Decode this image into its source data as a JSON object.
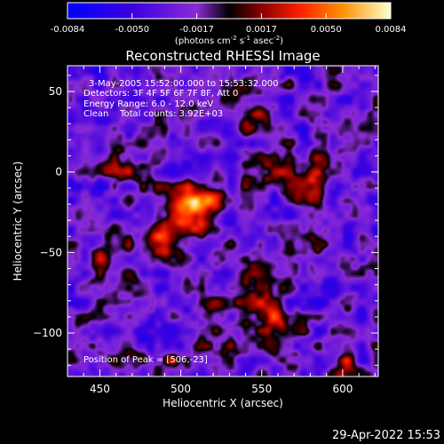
{
  "chart_data": {
    "type": "heatmap",
    "title": "Reconstructed RHESSI Image",
    "xlabel": "Heliocentric X (arcsec)",
    "ylabel": "Heliocentric Y (arcsec)",
    "xlim": [
      430,
      622
    ],
    "ylim": [
      -127,
      66
    ],
    "x_ticks": [
      450,
      500,
      550,
      600
    ],
    "y_ticks": [
      50,
      0,
      -50,
      -100
    ],
    "colorbar": {
      "ticks": [
        "-0.0084",
        "-0.0050",
        "-0.0017",
        "0.0017",
        "0.0050",
        "0.0084"
      ],
      "unit_text": {
        "prefix": "(photons cm",
        "sup1": "-2",
        "mid1": " s",
        "sup2": "-1",
        "mid2": " asec",
        "sup3": "-2",
        "suffix": ")"
      },
      "range": [
        -0.0084,
        0.0084
      ]
    },
    "annotations": [
      "3-May-2005 15:52:00.000 to 15:53:32.000",
      "Detectors: 3F 4F 5F 6F 7F 8F, Att 0",
      "Energy Range: 6.0 - 12.0 keV",
      "Clean    Total counts: 3.92E+03"
    ],
    "peak_label": "Position of Peak = [506,-23]",
    "sources": [
      {
        "x": 506,
        "y": -23,
        "amp": 0.0084
      },
      {
        "x": 490,
        "y": -42,
        "amp": 0.006
      },
      {
        "x": 520,
        "y": -12,
        "amp": 0.0045
      },
      {
        "x": 578,
        "y": -8,
        "amp": 0.006
      },
      {
        "x": 560,
        "y": 0,
        "amp": 0.0045
      },
      {
        "x": 548,
        "y": 32,
        "amp": 0.004
      },
      {
        "x": 465,
        "y": 5,
        "amp": 0.004
      },
      {
        "x": 455,
        "y": -55,
        "amp": 0.004
      },
      {
        "x": 470,
        "y": -75,
        "amp": 0.0038
      },
      {
        "x": 545,
        "y": -65,
        "amp": 0.0055
      },
      {
        "x": 555,
        "y": -90,
        "amp": 0.006
      },
      {
        "x": 580,
        "y": -45,
        "amp": 0.0035
      },
      {
        "x": 520,
        "y": -85,
        "amp": 0.004
      },
      {
        "x": 540,
        "y": 50,
        "amp": 0.003
      },
      {
        "x": 505,
        "y": -118,
        "amp": 0.003
      },
      {
        "x": 600,
        "y": -120,
        "amp": 0.0025
      },
      {
        "x": 470,
        "y": -118,
        "amp": 0.0025
      }
    ]
  },
  "footer": {
    "date": "29-Apr-2022 15:53"
  }
}
